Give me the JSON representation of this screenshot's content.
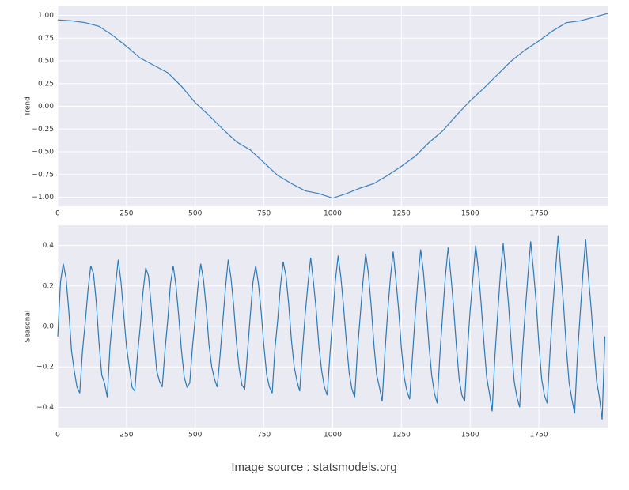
{
  "chart_data": [
    {
      "type": "line",
      "ylabel": "Trend",
      "grid": true,
      "background": "#eaeaf2",
      "xlim": [
        0,
        2000
      ],
      "xticks": [
        0,
        250,
        500,
        750,
        1000,
        1250,
        1500,
        1750
      ],
      "ylim": [
        -1.1,
        1.1
      ],
      "yticks": [
        {
          "value": 1,
          "label": "1.00"
        },
        0.75,
        {
          "value": 0.5,
          "label": "0.50"
        },
        0.25,
        {
          "value": 0,
          "label": "0.00"
        },
        {
          "value": -0.25,
          "label": "−0.25"
        },
        {
          "value": -0.5,
          "label": "−0.50"
        },
        {
          "value": -0.75,
          "label": "−0.75"
        },
        {
          "value": -1,
          "label": "−1.00"
        }
      ],
      "x": [
        0,
        50,
        100,
        150,
        200,
        250,
        300,
        350,
        400,
        450,
        500,
        550,
        600,
        650,
        700,
        750,
        800,
        850,
        900,
        950,
        1000,
        1050,
        1100,
        1150,
        1200,
        1250,
        1300,
        1350,
        1400,
        1450,
        1500,
        1550,
        1600,
        1650,
        1700,
        1750,
        1800,
        1850,
        1900,
        1950,
        2000
      ],
      "series": [
        {
          "color": "#3a7fc1",
          "values": [
            0.95,
            0.94,
            0.92,
            0.88,
            0.78,
            0.66,
            0.53,
            0.45,
            0.37,
            0.22,
            0.04,
            -0.1,
            -0.25,
            -0.39,
            -0.48,
            -0.62,
            -0.76,
            -0.85,
            -0.93,
            -0.96,
            -1.01,
            -0.96,
            -0.9,
            -0.85,
            -0.76,
            -0.66,
            -0.55,
            -0.4,
            -0.27,
            -0.1,
            0.06,
            0.2,
            0.35,
            0.5,
            0.62,
            0.72,
            0.83,
            0.92,
            0.94,
            0.98,
            1.02
          ]
        }
      ]
    },
    {
      "type": "line",
      "ylabel": "Seasonal",
      "grid": true,
      "background": "#eaeaf2",
      "xlim": [
        0,
        2000
      ],
      "xticks": [
        0,
        250,
        500,
        750,
        1000,
        1250,
        1500,
        1750
      ],
      "ylim": [
        -0.5,
        0.5
      ],
      "yticks": [
        0.4,
        0.2,
        {
          "value": 0,
          "label": "0.0"
        },
        {
          "value": -0.2,
          "label": "−0.2"
        },
        {
          "value": -0.4,
          "label": "−0.4"
        }
      ],
      "x": [
        0,
        10,
        20,
        30,
        40,
        50,
        60,
        70,
        80,
        90,
        100,
        110,
        120,
        130,
        140,
        150,
        160,
        170,
        180,
        190,
        200,
        210,
        220,
        230,
        240,
        250,
        260,
        270,
        280,
        290,
        300,
        310,
        320,
        330,
        340,
        350,
        360,
        370,
        380,
        390,
        400,
        410,
        420,
        430,
        440,
        450,
        460,
        470,
        480,
        490,
        500,
        510,
        520,
        530,
        540,
        550,
        560,
        570,
        580,
        590,
        600,
        610,
        620,
        630,
        640,
        650,
        660,
        670,
        680,
        690,
        700,
        710,
        720,
        730,
        740,
        750,
        760,
        770,
        780,
        790,
        800,
        810,
        820,
        830,
        840,
        850,
        860,
        870,
        880,
        890,
        900,
        910,
        920,
        930,
        940,
        950,
        960,
        970,
        980,
        990,
        1000,
        1010,
        1020,
        1030,
        1040,
        1050,
        1060,
        1070,
        1080,
        1090,
        1100,
        1110,
        1120,
        1130,
        1140,
        1150,
        1160,
        1170,
        1180,
        1190,
        1200,
        1210,
        1220,
        1230,
        1240,
        1250,
        1260,
        1270,
        1280,
        1290,
        1300,
        1310,
        1320,
        1330,
        1340,
        1350,
        1360,
        1370,
        1380,
        1390,
        1400,
        1410,
        1420,
        1430,
        1440,
        1450,
        1460,
        1470,
        1480,
        1490,
        1500,
        1510,
        1520,
        1530,
        1540,
        1550,
        1560,
        1570,
        1580,
        1590,
        1600,
        1610,
        1620,
        1630,
        1640,
        1650,
        1660,
        1670,
        1680,
        1690,
        1700,
        1710,
        1720,
        1730,
        1740,
        1750,
        1760,
        1770,
        1780,
        1790,
        1800,
        1810,
        1820,
        1830,
        1840,
        1850,
        1860,
        1870,
        1880,
        1890,
        1900,
        1910,
        1920,
        1930,
        1940,
        1950,
        1960,
        1970,
        1980,
        1990
      ],
      "series": [
        {
          "color": "#2a7ab8",
          "values": [
            -0.05,
            0.22,
            0.31,
            0.24,
            0.08,
            -0.12,
            -0.22,
            -0.3,
            -0.33,
            -0.12,
            0.02,
            0.18,
            0.3,
            0.26,
            0.12,
            -0.08,
            -0.24,
            -0.28,
            -0.35,
            -0.1,
            0.05,
            0.2,
            0.33,
            0.22,
            0.06,
            -0.1,
            -0.2,
            -0.3,
            -0.32,
            -0.14,
            0.0,
            0.17,
            0.29,
            0.25,
            0.1,
            -0.06,
            -0.22,
            -0.27,
            -0.3,
            -0.12,
            0.03,
            0.21,
            0.3,
            0.2,
            0.05,
            -0.12,
            -0.25,
            -0.3,
            -0.28,
            -0.1,
            0.04,
            0.2,
            0.31,
            0.23,
            0.09,
            -0.09,
            -0.2,
            -0.26,
            -0.3,
            -0.15,
            0.02,
            0.19,
            0.33,
            0.24,
            0.1,
            -0.08,
            -0.21,
            -0.29,
            -0.31,
            -0.13,
            0.05,
            0.22,
            0.3,
            0.21,
            0.07,
            -0.1,
            -0.24,
            -0.3,
            -0.33,
            -0.11,
            0.03,
            0.2,
            0.32,
            0.25,
            0.11,
            -0.07,
            -0.2,
            -0.27,
            -0.32,
            -0.12,
            0.06,
            0.21,
            0.34,
            0.22,
            0.08,
            -0.1,
            -0.22,
            -0.3,
            -0.34,
            -0.14,
            0.04,
            0.23,
            0.35,
            0.24,
            0.09,
            -0.08,
            -0.23,
            -0.31,
            -0.35,
            -0.12,
            0.05,
            0.22,
            0.36,
            0.26,
            0.1,
            -0.09,
            -0.24,
            -0.3,
            -0.37,
            -0.13,
            0.07,
            0.24,
            0.37,
            0.23,
            0.08,
            -0.11,
            -0.25,
            -0.32,
            -0.36,
            -0.15,
            0.05,
            0.23,
            0.38,
            0.27,
            0.1,
            -0.09,
            -0.24,
            -0.33,
            -0.38,
            -0.14,
            0.06,
            0.25,
            0.39,
            0.25,
            0.09,
            -0.1,
            -0.26,
            -0.34,
            -0.37,
            -0.12,
            0.08,
            0.24,
            0.4,
            0.28,
            0.11,
            -0.08,
            -0.25,
            -0.33,
            -0.42,
            -0.15,
            0.06,
            0.26,
            0.41,
            0.26,
            0.1,
            -0.1,
            -0.27,
            -0.35,
            -0.4,
            -0.13,
            0.07,
            0.25,
            0.42,
            0.28,
            0.12,
            -0.09,
            -0.26,
            -0.34,
            -0.38,
            -0.14,
            0.08,
            0.27,
            0.45,
            0.27,
            0.1,
            -0.11,
            -0.28,
            -0.36,
            -0.43,
            -0.15,
            0.06,
            0.26,
            0.43,
            0.25,
            0.09,
            -0.1,
            -0.27,
            -0.35,
            -0.46,
            -0.05
          ]
        }
      ]
    }
  ],
  "footer": "Image source : statsmodels.org"
}
